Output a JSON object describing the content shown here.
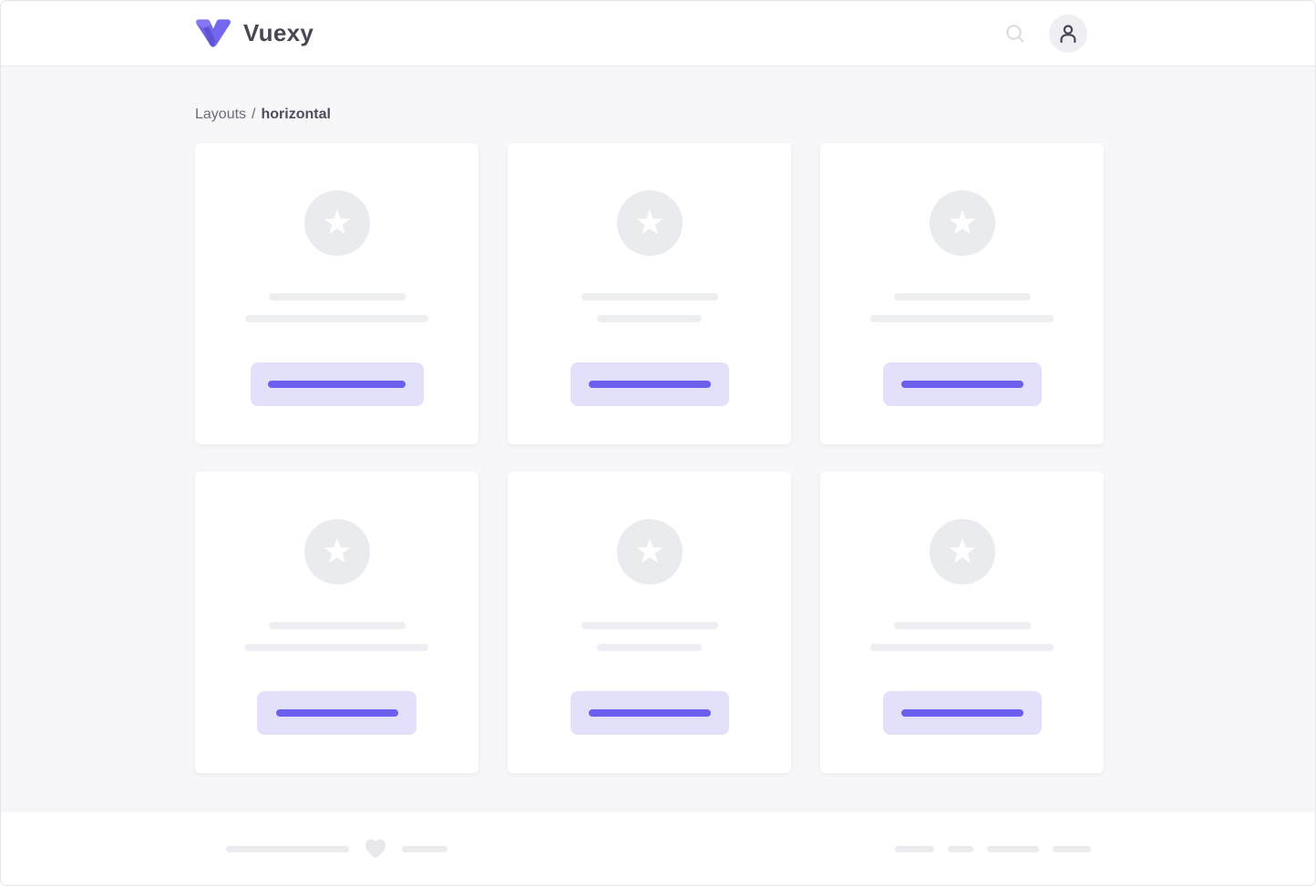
{
  "header": {
    "brand_name": "Vuexy"
  },
  "breadcrumb": {
    "parent": "Layouts",
    "separator": "/",
    "current": "horizontal"
  },
  "icons": {
    "logo": "vuexy-v-mark",
    "search": "magnifier",
    "avatar": "person-outline",
    "card_badge": "star",
    "footer_heart": "heart"
  },
  "colors": {
    "brand_purple": "#7367f0",
    "brand_purple_dark": "#5c52cf",
    "button_placeholder_bg": "#e3e0fb",
    "button_placeholder_line": "#6c5fee",
    "skeleton_gray": "#eceef1",
    "circle_gray": "#e9ebee",
    "footer_line_gray": "#e9ebef",
    "heading_text": "#4b4556",
    "breadcrumb_text": "#6e6a7a",
    "page_background": "#f7f6f8"
  },
  "cards": [
    {
      "name": "card-1",
      "line1_width": 150,
      "line2_width": 201,
      "button_width": 190,
      "button_line_width": 151
    },
    {
      "name": "card-2",
      "line1_width": 150,
      "line2_width": 115,
      "button_width": 174,
      "button_line_width": 134
    },
    {
      "name": "card-3",
      "line1_width": 150,
      "line2_width": 201,
      "button_width": 174,
      "button_line_width": 134
    },
    {
      "name": "card-4",
      "line1_width": 150,
      "line2_width": 201,
      "button_width": 175,
      "button_line_width": 134
    },
    {
      "name": "card-5",
      "line1_width": 150,
      "line2_width": 115,
      "button_width": 174,
      "button_line_width": 134
    },
    {
      "name": "card-6",
      "line1_width": 150,
      "line2_width": 201,
      "button_width": 174,
      "button_line_width": 134
    }
  ],
  "footer": {
    "left_lines": [
      135,
      50
    ],
    "right_lines": [
      43,
      28,
      57,
      42
    ]
  }
}
